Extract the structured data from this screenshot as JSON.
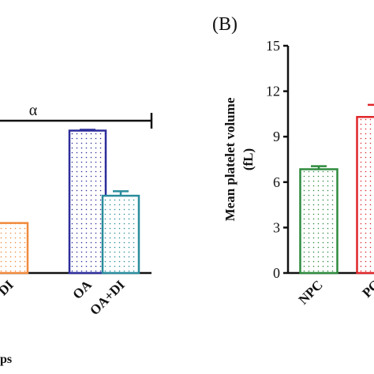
{
  "charts": [
    {
      "chart_data": {
        "type": "bar",
        "categories": [
          "DI",
          "OA",
          "OA+DI"
        ],
        "values": [
          3.3,
          9.4,
          5.1
        ],
        "errors": [
          0,
          0.05,
          0.3
        ],
        "colors": [
          "#f08a3c",
          "#2d2d9c",
          "#2a8c9c"
        ],
        "ylim": [
          0,
          15
        ],
        "x_label": "ps",
        "annotation": "α"
      }
    },
    {
      "chart_data": {
        "type": "bar",
        "title": "(B)",
        "y_label": [
          "Mean platelet volume",
          "(fL)"
        ],
        "categories": [
          "NPC",
          "PC"
        ],
        "values": [
          6.85,
          10.3
        ],
        "errors": [
          0.2,
          0.8
        ],
        "colors": [
          "#2e8b3e",
          "#e0262a"
        ],
        "ylim": [
          0,
          15
        ],
        "yticks": [
          0,
          3,
          6,
          9,
          12,
          15
        ]
      }
    }
  ]
}
